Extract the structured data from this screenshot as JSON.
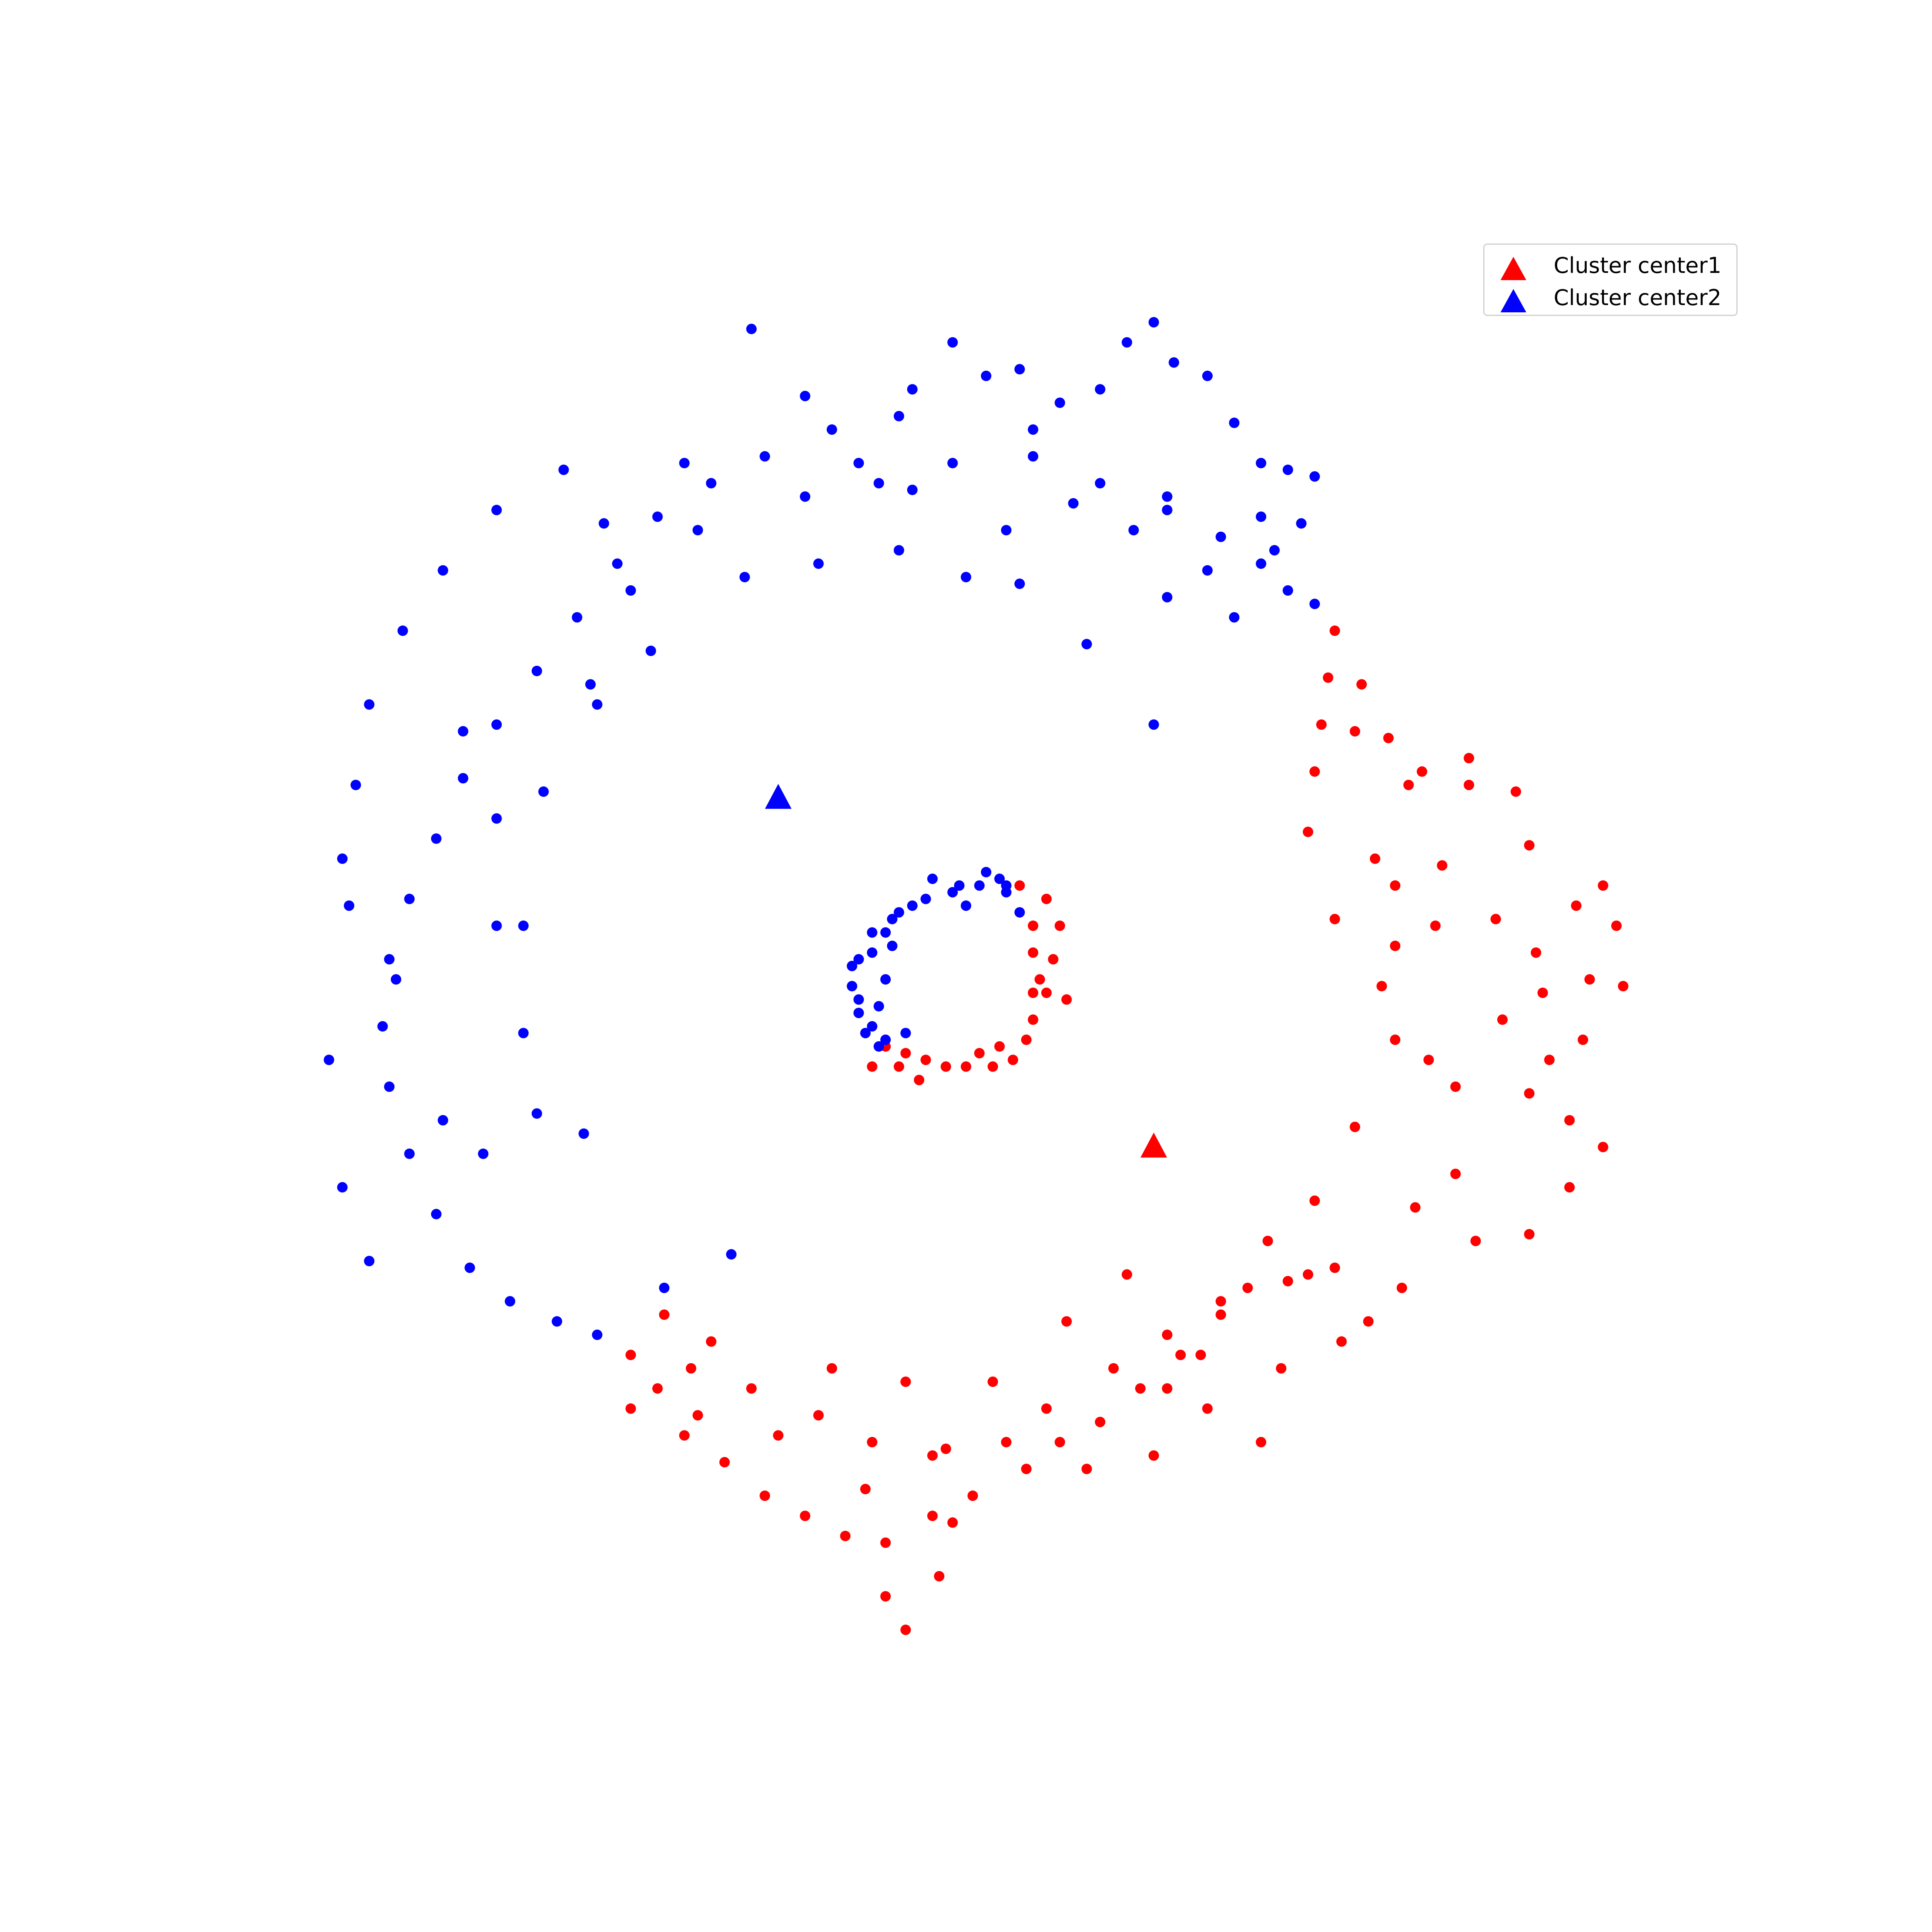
{
  "chart_data": {
    "type": "scatter",
    "title": "",
    "xlabel": "",
    "ylabel": "",
    "axes_visible": false,
    "grid": false,
    "legend_position": "top-right",
    "xlim": [
      -1.2,
      1.2
    ],
    "ylim": [
      -1.2,
      1.2
    ],
    "colors": {
      "cluster1": "#ff0000",
      "cluster2": "#0000ff"
    },
    "centers": [
      {
        "name": "Cluster center1",
        "x": 0.28,
        "y": -0.27,
        "color": "#ff0000",
        "marker": "triangle-up"
      },
      {
        "name": "Cluster center2",
        "x": -0.28,
        "y": 0.25,
        "color": "#0000ff",
        "marker": "triangle-up"
      }
    ],
    "series": [
      {
        "color": "#ff0000",
        "points": [
          [
            0.55,
            0.5
          ],
          [
            0.54,
            0.43
          ],
          [
            0.53,
            0.36
          ],
          [
            0.52,
            0.29
          ],
          [
            0.51,
            0.2
          ],
          [
            0.55,
            0.07
          ],
          [
            0.59,
            0.42
          ],
          [
            0.58,
            0.35
          ],
          [
            0.63,
            0.34
          ],
          [
            0.66,
            0.27
          ],
          [
            0.68,
            0.29
          ],
          [
            0.75,
            0.31
          ],
          [
            0.82,
            0.26
          ],
          [
            0.84,
            0.18
          ],
          [
            0.75,
            0.27
          ],
          [
            0.71,
            0.15
          ],
          [
            0.7,
            0.06
          ],
          [
            0.79,
            0.07
          ],
          [
            0.85,
            0.02
          ],
          [
            0.91,
            0.09
          ],
          [
            0.95,
            0.12
          ],
          [
            0.97,
            0.06
          ],
          [
            0.93,
            -0.02
          ],
          [
            0.98,
            -0.03
          ],
          [
            0.92,
            -0.11
          ],
          [
            0.86,
            -0.04
          ],
          [
            0.8,
            -0.08
          ],
          [
            0.87,
            -0.14
          ],
          [
            0.84,
            -0.19
          ],
          [
            0.9,
            -0.23
          ],
          [
            0.95,
            -0.27
          ],
          [
            0.9,
            -0.33
          ],
          [
            0.84,
            -0.4
          ],
          [
            0.76,
            -0.41
          ],
          [
            0.73,
            -0.31
          ],
          [
            0.73,
            -0.18
          ],
          [
            0.69,
            -0.14
          ],
          [
            0.64,
            -0.11
          ],
          [
            0.62,
            -0.03
          ],
          [
            0.64,
            0.03
          ],
          [
            0.61,
            0.16
          ],
          [
            0.64,
            0.12
          ],
          [
            0.67,
            -0.36
          ],
          [
            0.65,
            -0.48
          ],
          [
            0.55,
            -0.45
          ],
          [
            0.48,
            -0.47
          ],
          [
            0.42,
            -0.48
          ],
          [
            0.38,
            -0.52
          ],
          [
            0.32,
            -0.58
          ],
          [
            0.26,
            -0.63
          ],
          [
            0.2,
            -0.68
          ],
          [
            0.14,
            -0.71
          ],
          [
            0.09,
            -0.75
          ],
          [
            0.01,
            -0.79
          ],
          [
            -0.05,
            -0.82
          ],
          [
            -0.12,
            -0.86
          ],
          [
            -0.18,
            -0.85
          ],
          [
            -0.24,
            -0.82
          ],
          [
            -0.3,
            -0.79
          ],
          [
            -0.36,
            -0.74
          ],
          [
            -0.42,
            -0.7
          ],
          [
            -0.46,
            -0.63
          ],
          [
            -0.5,
            -0.58
          ],
          [
            -0.41,
            -0.6
          ],
          [
            -0.32,
            -0.63
          ],
          [
            -0.22,
            -0.67
          ],
          [
            -0.14,
            -0.71
          ],
          [
            -0.03,
            -0.72
          ],
          [
            0.04,
            -0.62
          ],
          [
            0.12,
            -0.66
          ],
          [
            0.22,
            -0.6
          ],
          [
            0.3,
            -0.55
          ],
          [
            0.38,
            -0.5
          ],
          [
            0.45,
            -0.41
          ],
          [
            0.52,
            -0.35
          ],
          [
            0.58,
            -0.24
          ],
          [
            0.47,
            -0.6
          ],
          [
            0.56,
            -0.56
          ],
          [
            -0.5,
            -0.66
          ],
          [
            -0.4,
            -0.67
          ],
          [
            -0.28,
            -0.7
          ],
          [
            -0.15,
            -0.78
          ],
          [
            -0.05,
            -0.73
          ],
          [
            0.06,
            -0.71
          ],
          [
            0.18,
            -0.75
          ],
          [
            0.28,
            -0.73
          ],
          [
            0.36,
            -0.66
          ],
          [
            0.44,
            -0.71
          ],
          [
            -0.09,
            -0.62
          ],
          [
            -0.2,
            -0.6
          ],
          [
            -0.04,
            -0.91
          ],
          [
            -0.09,
            -0.99
          ],
          [
            -0.12,
            -0.94
          ],
          [
            -0.02,
            -0.83
          ],
          [
            0.15,
            -0.53
          ],
          [
            0.24,
            -0.46
          ],
          [
            0.3,
            -0.63
          ],
          [
            0.35,
            -0.58
          ],
          [
            -0.38,
            -0.56
          ],
          [
            -0.45,
            -0.52
          ],
          [
            0.51,
            -0.46
          ],
          [
            0.6,
            -0.53
          ],
          [
            0.1,
            -0.08
          ],
          [
            0.12,
            -0.04
          ],
          [
            0.13,
            0.01
          ],
          [
            0.14,
            0.06
          ],
          [
            0.12,
            0.1
          ],
          [
            0.1,
            0.06
          ],
          [
            0.11,
            -0.02
          ],
          [
            0.09,
            -0.11
          ],
          [
            0.07,
            -0.14
          ],
          [
            0.04,
            -0.15
          ],
          [
            0.0,
            -0.15
          ],
          [
            -0.03,
            -0.15
          ],
          [
            -0.06,
            -0.14
          ],
          [
            -0.09,
            -0.13
          ],
          [
            -0.12,
            -0.12
          ],
          [
            -0.14,
            -0.15
          ],
          [
            -0.1,
            -0.15
          ],
          [
            0.02,
            -0.13
          ],
          [
            0.05,
            -0.12
          ],
          [
            0.08,
            0.12
          ],
          [
            0.1,
            0.02
          ],
          [
            -0.07,
            -0.17
          ],
          [
            0.1,
            -0.04
          ],
          [
            0.15,
            -0.05
          ]
        ]
      },
      {
        "color": "#0000ff",
        "points": [
          [
            -0.1,
            0.82
          ],
          [
            -0.2,
            0.8
          ],
          [
            -0.3,
            0.76
          ],
          [
            -0.38,
            0.72
          ],
          [
            -0.46,
            0.67
          ],
          [
            -0.52,
            0.6
          ],
          [
            -0.58,
            0.52
          ],
          [
            -0.64,
            0.44
          ],
          [
            -0.7,
            0.36
          ],
          [
            -0.75,
            0.28
          ],
          [
            -0.79,
            0.19
          ],
          [
            -0.83,
            0.1
          ],
          [
            -0.86,
            0.01
          ],
          [
            -0.87,
            -0.09
          ],
          [
            -0.86,
            -0.18
          ],
          [
            -0.83,
            -0.28
          ],
          [
            -0.79,
            -0.37
          ],
          [
            -0.74,
            -0.45
          ],
          [
            -0.68,
            -0.5
          ],
          [
            -0.61,
            -0.53
          ],
          [
            -0.55,
            -0.55
          ],
          [
            -0.45,
            -0.48
          ],
          [
            -0.35,
            -0.43
          ],
          [
            -0.92,
            0.09
          ],
          [
            -0.95,
            -0.14
          ],
          [
            -0.93,
            -0.33
          ],
          [
            -0.89,
            -0.44
          ],
          [
            -0.75,
            0.35
          ],
          [
            -0.7,
            0.22
          ],
          [
            -0.66,
            0.06
          ],
          [
            -0.66,
            -0.1
          ],
          [
            -0.64,
            -0.22
          ],
          [
            -0.57,
            -0.25
          ],
          [
            -0.56,
            0.42
          ],
          [
            -0.47,
            0.47
          ],
          [
            -0.4,
            0.65
          ],
          [
            -0.24,
            0.7
          ],
          [
            -0.13,
            0.72
          ],
          [
            -0.02,
            0.75
          ],
          [
            0.1,
            0.76
          ],
          [
            0.2,
            0.72
          ],
          [
            0.3,
            0.68
          ],
          [
            0.38,
            0.64
          ],
          [
            0.44,
            0.6
          ],
          [
            0.48,
            0.56
          ],
          [
            0.52,
            0.54
          ],
          [
            0.4,
            0.52
          ],
          [
            0.3,
            0.55
          ],
          [
            0.18,
            0.48
          ],
          [
            0.08,
            0.57
          ],
          [
            0.0,
            0.58
          ],
          [
            -0.1,
            0.62
          ],
          [
            -0.22,
            0.6
          ],
          [
            -0.33,
            0.58
          ],
          [
            -0.02,
            0.93
          ],
          [
            0.03,
            0.88
          ],
          [
            0.08,
            0.89
          ],
          [
            0.14,
            0.84
          ],
          [
            0.2,
            0.86
          ],
          [
            0.24,
            0.93
          ],
          [
            0.28,
            0.96
          ],
          [
            0.31,
            0.9
          ],
          [
            0.36,
            0.88
          ],
          [
            0.4,
            0.81
          ],
          [
            0.44,
            0.75
          ],
          [
            0.48,
            0.74
          ],
          [
            0.52,
            0.73
          ],
          [
            0.5,
            0.66
          ],
          [
            0.46,
            0.62
          ],
          [
            0.36,
            0.59
          ],
          [
            0.25,
            0.65
          ],
          [
            0.16,
            0.69
          ],
          [
            0.06,
            0.65
          ],
          [
            -0.08,
            0.71
          ],
          [
            -0.16,
            0.75
          ],
          [
            -0.24,
            0.85
          ],
          [
            -0.32,
            0.95
          ],
          [
            -0.42,
            0.75
          ],
          [
            -0.54,
            0.66
          ],
          [
            -0.6,
            0.74
          ],
          [
            -0.7,
            0.68
          ],
          [
            -0.78,
            0.59
          ],
          [
            -0.84,
            0.5
          ],
          [
            -0.89,
            0.39
          ],
          [
            -0.91,
            0.27
          ],
          [
            -0.93,
            0.16
          ],
          [
            -0.85,
            -0.02
          ],
          [
            -0.78,
            -0.23
          ],
          [
            -0.72,
            -0.28
          ],
          [
            -0.7,
            0.06
          ],
          [
            -0.63,
            0.26
          ],
          [
            -0.55,
            0.39
          ],
          [
            0.3,
            0.7
          ],
          [
            0.1,
            0.8
          ],
          [
            -0.08,
            0.86
          ],
          [
            0.44,
            0.67
          ],
          [
            -0.5,
            0.56
          ],
          [
            0.28,
            0.36
          ],
          [
            -0.05,
            0.13
          ],
          [
            -0.01,
            0.12
          ],
          [
            0.03,
            0.14
          ],
          [
            0.06,
            0.12
          ],
          [
            0.08,
            0.08
          ],
          [
            -0.08,
            0.09
          ],
          [
            -0.11,
            0.07
          ],
          [
            -0.14,
            0.05
          ],
          [
            -0.16,
            0.01
          ],
          [
            -0.17,
            -0.03
          ],
          [
            -0.16,
            -0.07
          ],
          [
            -0.14,
            -0.09
          ],
          [
            -0.12,
            -0.11
          ],
          [
            -0.13,
            -0.06
          ],
          [
            -0.12,
            -0.02
          ],
          [
            -0.14,
            0.02
          ],
          [
            -0.12,
            0.05
          ],
          [
            -0.1,
            0.08
          ],
          [
            -0.02,
            0.11
          ],
          [
            0.0,
            0.09
          ],
          [
            0.05,
            0.13
          ],
          [
            -0.16,
            -0.05
          ],
          [
            -0.15,
            -0.1
          ],
          [
            -0.11,
            0.03
          ],
          [
            -0.09,
            -0.1
          ],
          [
            0.02,
            0.12
          ],
          [
            -0.06,
            0.1
          ],
          [
            0.06,
            0.11
          ],
          [
            -0.17,
            0.0
          ],
          [
            -0.13,
            -0.12
          ]
        ]
      }
    ]
  }
}
